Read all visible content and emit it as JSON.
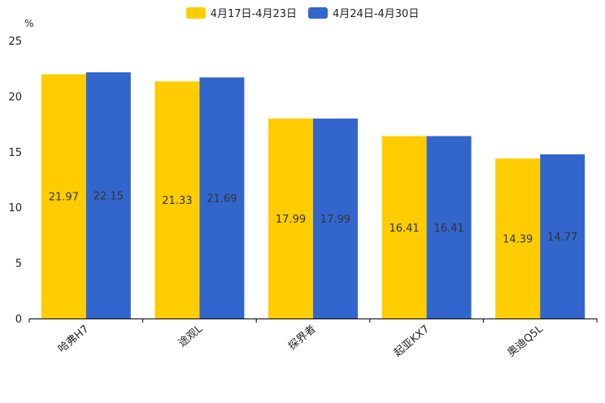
{
  "chart_data": {
    "type": "bar",
    "unit": "%",
    "categories": [
      "哈弗H7",
      "途观L",
      "探界者",
      "起亚KX7",
      "奥迪Q5L"
    ],
    "series": [
      {
        "name": "4月17日-4月23日",
        "color": "#FFCC00",
        "values": [
          21.97,
          21.33,
          17.99,
          16.41,
          14.39
        ]
      },
      {
        "name": "4月24日-4月30日",
        "color": "#3366CC",
        "values": [
          22.15,
          21.69,
          17.99,
          16.41,
          14.77
        ]
      }
    ],
    "ylim": [
      0,
      25
    ],
    "yticks": [
      "0",
      "5",
      "10",
      "15",
      "20",
      "25"
    ]
  }
}
